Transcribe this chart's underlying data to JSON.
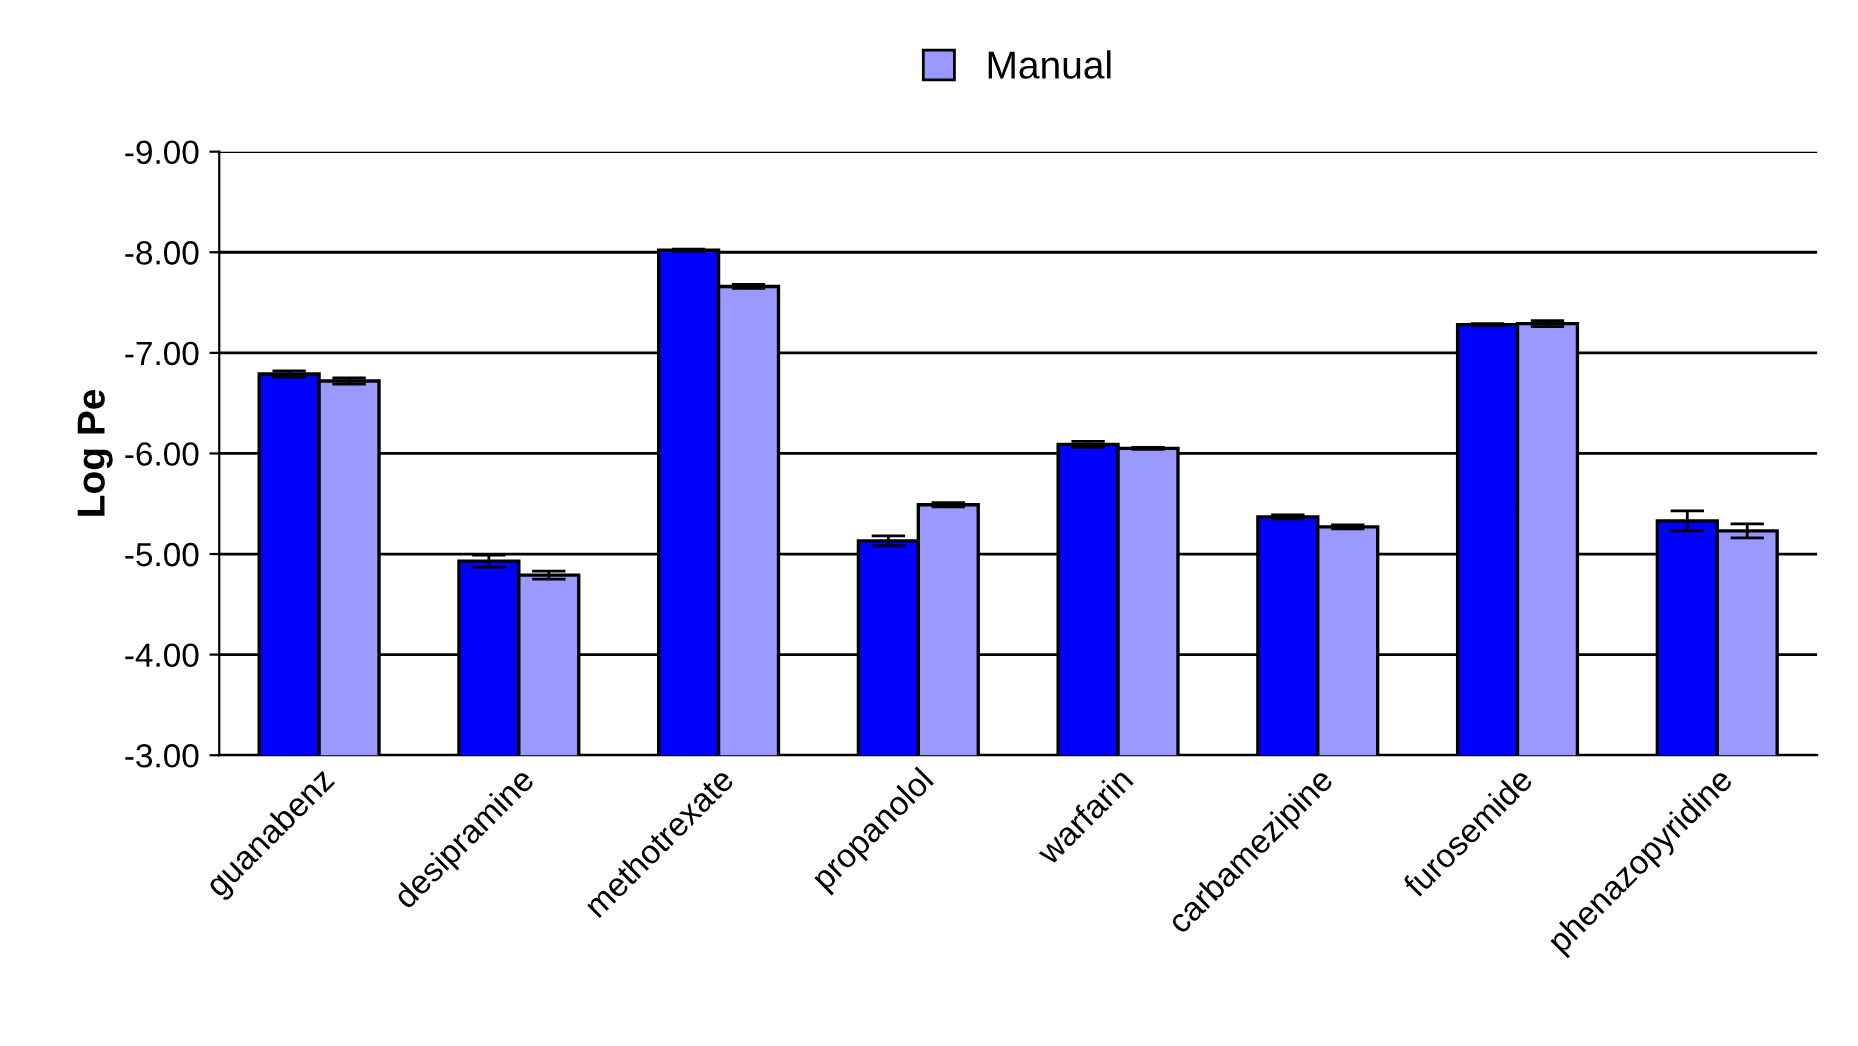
{
  "chart_data": {
    "type": "bar",
    "ylabel": "Log Pe",
    "categories": [
      "guanabenz",
      "desipramine",
      "methotrexate",
      "propanolol",
      "warfarin",
      "carbamezipine",
      "furosemide",
      "phenazopyridine"
    ],
    "series": [
      {
        "color": "#0000ff",
        "values": [
          -6.79,
          -4.93,
          -8.02,
          -5.13,
          -6.09,
          -5.37,
          -7.28,
          -5.33
        ],
        "errors": [
          0.03,
          0.06,
          0.01,
          0.05,
          0.03,
          0.02,
          0.01,
          0.1
        ]
      },
      {
        "name": "Manual",
        "color": "#9999ff",
        "values": [
          -6.72,
          -4.79,
          -7.66,
          -5.49,
          -6.05,
          -5.27,
          -7.29,
          -5.23
        ],
        "errors": [
          0.03,
          0.04,
          0.02,
          0.02,
          0.01,
          0.02,
          0.03,
          0.07
        ]
      }
    ],
    "ylim": [
      -3,
      -9
    ],
    "yticks": [
      {
        "value": -9,
        "label": "-9.00"
      },
      {
        "value": -8,
        "label": "-8.00"
      },
      {
        "value": -7,
        "label": "-7.00"
      },
      {
        "value": -6,
        "label": "-6.00"
      },
      {
        "value": -5,
        "label": "-5.00"
      },
      {
        "value": -4,
        "label": "-4.00"
      },
      {
        "value": -3,
        "label": "-3.00"
      }
    ],
    "grid": "y",
    "legend": "top"
  }
}
